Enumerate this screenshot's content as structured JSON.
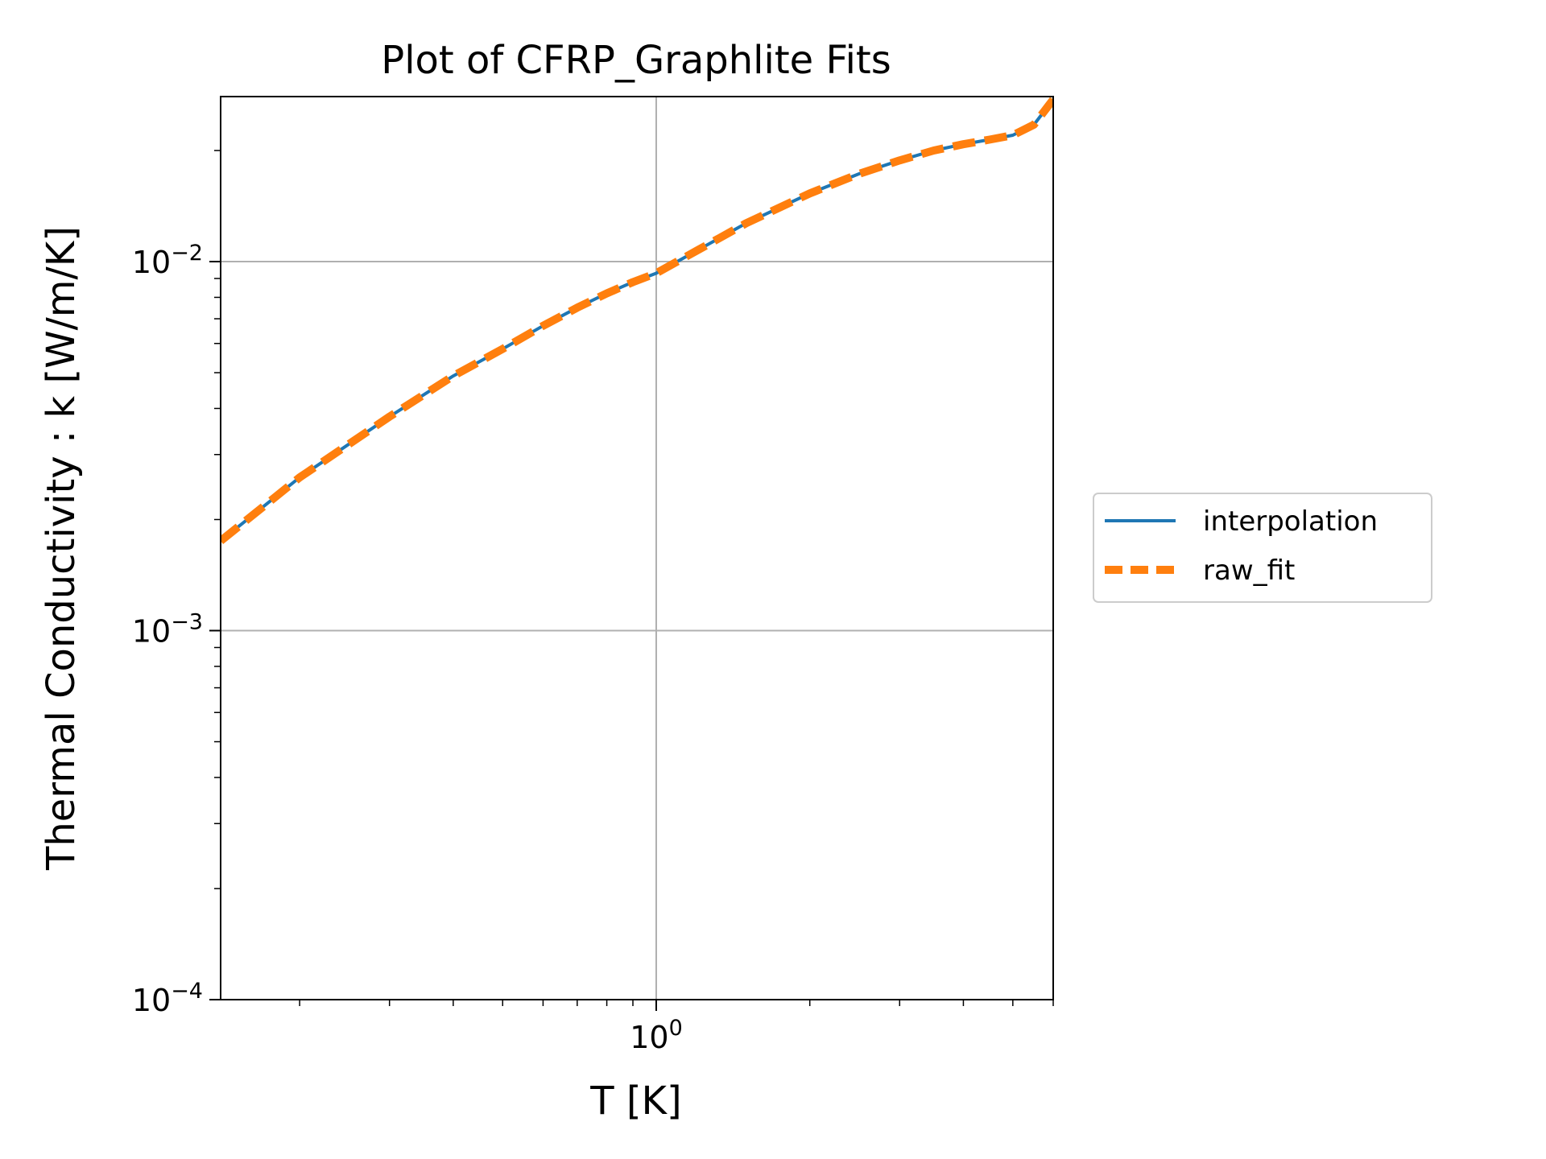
{
  "chart_data": {
    "type": "line",
    "title": "Plot of CFRP_Graphlite Fits",
    "xlabel": "T [K]",
    "ylabel": "Thermal Conductivity : k [W/m/K]",
    "xscale": "log",
    "yscale": "log",
    "xlim": [
      0.14,
      6.0
    ],
    "ylim": [
      0.0001,
      0.028
    ],
    "grid": true,
    "legend_position": "outside-right",
    "x_tick_labels": [
      {
        "value": 1,
        "base": "10",
        "exp": "0"
      }
    ],
    "y_tick_labels": [
      {
        "value": 0.0001,
        "base": "10",
        "exp": "−4"
      },
      {
        "value": 0.001,
        "base": "10",
        "exp": "−3"
      },
      {
        "value": 0.01,
        "base": "10",
        "exp": "−2"
      }
    ],
    "series": [
      {
        "name": "interpolation",
        "color": "#1f77b4",
        "style": "solid",
        "x": [
          0.14,
          0.2,
          0.3,
          0.4,
          0.5,
          0.6,
          0.7,
          0.8,
          0.9,
          1.0,
          1.2,
          1.5,
          2.0,
          2.5,
          3.0,
          3.5,
          4.0,
          4.5,
          5.0,
          5.5,
          6.0
        ],
        "y": [
          0.00175,
          0.0026,
          0.0038,
          0.0049,
          0.0058,
          0.0067,
          0.0075,
          0.0082,
          0.0088,
          0.0093,
          0.0107,
          0.0127,
          0.0153,
          0.0173,
          0.0188,
          0.02,
          0.0208,
          0.0214,
          0.022,
          0.0235,
          0.0275
        ]
      },
      {
        "name": "raw_fit",
        "color": "#ff7f0e",
        "style": "dashed",
        "x": [
          0.14,
          0.2,
          0.3,
          0.4,
          0.5,
          0.6,
          0.7,
          0.8,
          0.9,
          1.0,
          1.2,
          1.5,
          2.0,
          2.5,
          3.0,
          3.5,
          4.0,
          4.5,
          5.0,
          5.5,
          6.0
        ],
        "y": [
          0.00175,
          0.0026,
          0.0038,
          0.0049,
          0.0058,
          0.0067,
          0.0075,
          0.0082,
          0.0088,
          0.0093,
          0.0107,
          0.0127,
          0.0153,
          0.0173,
          0.0188,
          0.02,
          0.0208,
          0.0214,
          0.022,
          0.0235,
          0.0275
        ]
      }
    ]
  }
}
